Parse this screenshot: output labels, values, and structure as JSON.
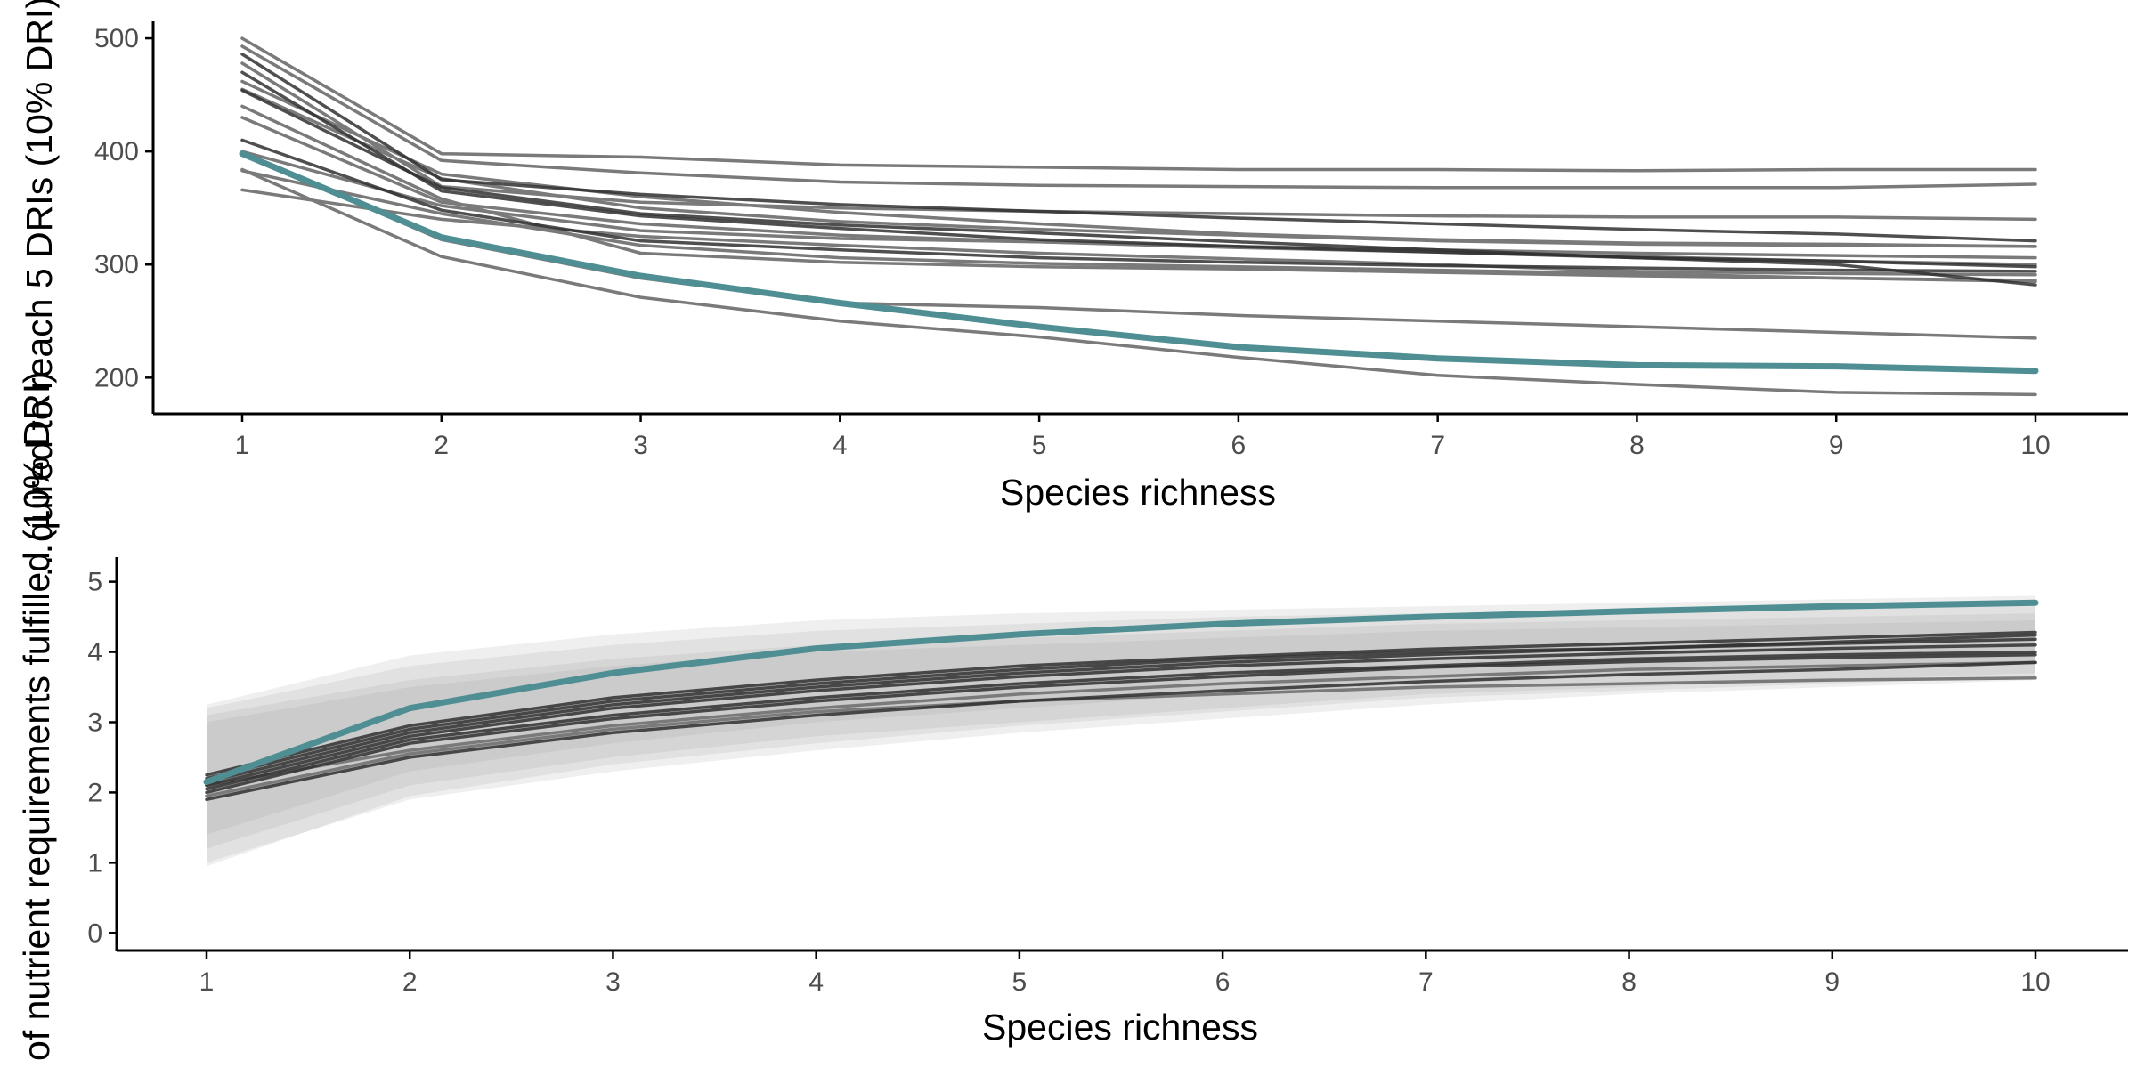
{
  "colors": {
    "highlight": "#4f8f94",
    "line_light": "#7a7a7a",
    "line_dark": "#303030",
    "band": "#9a9a9a"
  },
  "chart_data": [
    {
      "type": "line",
      "xlabel": "Species richness",
      "ylabel": "…quired to reach 5 DRIs (10% DRI)",
      "x": [
        1,
        2,
        3,
        4,
        5,
        6,
        7,
        8,
        9,
        10
      ],
      "xticks": [
        "1",
        "2",
        "3",
        "4",
        "5",
        "6",
        "7",
        "8",
        "9",
        "10"
      ],
      "yticks": [
        "200",
        "300",
        "400",
        "500"
      ],
      "ylim": [
        168,
        515
      ],
      "grid": false,
      "series": [
        {
          "style": "light",
          "values": [
            500,
            398,
            395,
            388,
            386,
            384,
            384,
            383,
            384,
            384
          ]
        },
        {
          "style": "light",
          "values": [
            493,
            392,
            381,
            373,
            370,
            369,
            368,
            368,
            368,
            371
          ]
        },
        {
          "style": "dark",
          "values": [
            486,
            375,
            362,
            353,
            347,
            341,
            336,
            331,
            327,
            321
          ]
        },
        {
          "style": "light",
          "values": [
            478,
            369,
            355,
            350,
            347,
            345,
            343,
            342,
            342,
            340
          ]
        },
        {
          "style": "dark",
          "values": [
            470,
            365,
            343,
            332,
            322,
            316,
            311,
            306,
            303,
            298
          ]
        },
        {
          "style": "light",
          "values": [
            462,
            380,
            360,
            346,
            336,
            327,
            322,
            319,
            318,
            316
          ]
        },
        {
          "style": "light",
          "values": [
            455,
            376,
            350,
            338,
            331,
            326,
            321,
            318,
            317,
            316
          ]
        },
        {
          "style": "dark",
          "values": [
            454,
            368,
            345,
            335,
            328,
            320,
            313,
            306,
            300,
            282
          ]
        },
        {
          "style": "light",
          "values": [
            430,
            355,
            336,
            326,
            320,
            315,
            311,
            307,
            303,
            300
          ]
        },
        {
          "style": "dark",
          "values": [
            410,
            348,
            321,
            313,
            306,
            302,
            299,
            297,
            295,
            294
          ]
        },
        {
          "style": "light",
          "values": [
            400,
            352,
            330,
            323,
            320,
            316,
            313,
            310,
            308,
            306
          ]
        },
        {
          "style": "light",
          "values": [
            383,
            345,
            317,
            306,
            301,
            298,
            295,
            292,
            288,
            285
          ]
        },
        {
          "style": "light",
          "values": [
            366,
            340,
            325,
            317,
            310,
            305,
            300,
            294,
            292,
            291
          ]
        },
        {
          "style": "light",
          "values": [
            440,
            358,
            310,
            302,
            298,
            296,
            293,
            290,
            288,
            286
          ]
        },
        {
          "style": "light",
          "values": [
            398,
            322,
            288,
            266,
            262,
            255,
            250,
            245,
            240,
            235
          ]
        },
        {
          "style": "light",
          "values": [
            384,
            307,
            271,
            250,
            236,
            218,
            202,
            194,
            187,
            185
          ]
        },
        {
          "style": "highlight",
          "values": [
            398,
            324,
            290,
            266,
            245,
            227,
            217,
            211,
            210,
            206
          ]
        }
      ]
    },
    {
      "type": "line",
      "xlabel": "Species richness",
      "ylabel": "of nutrient requirements fulfilled (10% DRI)",
      "x": [
        1,
        2,
        3,
        4,
        5,
        6,
        7,
        8,
        9,
        10
      ],
      "xticks": [
        "1",
        "2",
        "3",
        "4",
        "5",
        "6",
        "7",
        "8",
        "9",
        "10"
      ],
      "yticks": [
        "0",
        "1",
        "2",
        "3",
        "4",
        "5"
      ],
      "ylim": [
        -0.25,
        5.35
      ],
      "grid": false,
      "bands": [
        {
          "lower": [
            1.2,
            2.1,
            2.5,
            2.8,
            3.0,
            3.2,
            3.4,
            3.5,
            3.6,
            3.7
          ],
          "upper": [
            3.1,
            3.6,
            3.9,
            4.1,
            4.2,
            4.3,
            4.4,
            4.45,
            4.5,
            4.55
          ]
        },
        {
          "lower": [
            1.0,
            1.9,
            2.3,
            2.6,
            2.85,
            3.05,
            3.25,
            3.4,
            3.5,
            3.6
          ],
          "upper": [
            3.2,
            3.8,
            4.1,
            4.3,
            4.4,
            4.5,
            4.55,
            4.6,
            4.65,
            4.7
          ]
        },
        {
          "lower": [
            1.4,
            2.3,
            2.7,
            3.0,
            3.2,
            3.4,
            3.55,
            3.65,
            3.75,
            3.85
          ],
          "upper": [
            3.0,
            3.5,
            3.8,
            4.0,
            4.1,
            4.2,
            4.3,
            4.35,
            4.4,
            4.45
          ]
        },
        {
          "lower": [
            0.95,
            1.95,
            2.4,
            2.7,
            2.95,
            3.15,
            3.35,
            3.45,
            3.55,
            3.65
          ],
          "upper": [
            3.25,
            3.95,
            4.25,
            4.45,
            4.55,
            4.6,
            4.65,
            4.7,
            4.75,
            4.8
          ]
        }
      ],
      "series": [
        {
          "style": "dark",
          "values": [
            2.2,
            2.9,
            3.3,
            3.55,
            3.75,
            3.9,
            4.0,
            4.05,
            4.12,
            4.18
          ]
        },
        {
          "style": "dark",
          "values": [
            2.1,
            2.8,
            3.2,
            3.45,
            3.65,
            3.8,
            3.9,
            3.98,
            4.05,
            4.1
          ]
        },
        {
          "style": "dark",
          "values": [
            2.15,
            2.85,
            3.25,
            3.5,
            3.7,
            3.85,
            3.96,
            4.05,
            4.14,
            4.24
          ]
        },
        {
          "style": "dark",
          "values": [
            2.05,
            2.75,
            3.1,
            3.35,
            3.55,
            3.7,
            3.8,
            3.9,
            3.96,
            4.0
          ]
        },
        {
          "style": "dark",
          "values": [
            2.0,
            2.7,
            3.05,
            3.3,
            3.5,
            3.65,
            3.78,
            3.86,
            3.92,
            3.96
          ]
        },
        {
          "style": "dark",
          "values": [
            2.25,
            2.95,
            3.35,
            3.6,
            3.8,
            3.93,
            4.04,
            4.12,
            4.2,
            4.28
          ]
        },
        {
          "style": "dark",
          "values": [
            1.9,
            2.5,
            2.85,
            3.1,
            3.3,
            3.45,
            3.58,
            3.68,
            3.75,
            3.85
          ]
        },
        {
          "style": "light",
          "values": [
            2.1,
            2.6,
            2.95,
            3.2,
            3.4,
            3.55,
            3.65,
            3.75,
            3.8,
            3.85
          ]
        },
        {
          "style": "light",
          "values": [
            1.95,
            2.55,
            2.9,
            3.15,
            3.3,
            3.4,
            3.5,
            3.55,
            3.6,
            3.63
          ]
        },
        {
          "style": "highlight",
          "values": [
            2.15,
            3.2,
            3.7,
            4.05,
            4.25,
            4.4,
            4.5,
            4.58,
            4.65,
            4.7
          ]
        }
      ]
    }
  ]
}
